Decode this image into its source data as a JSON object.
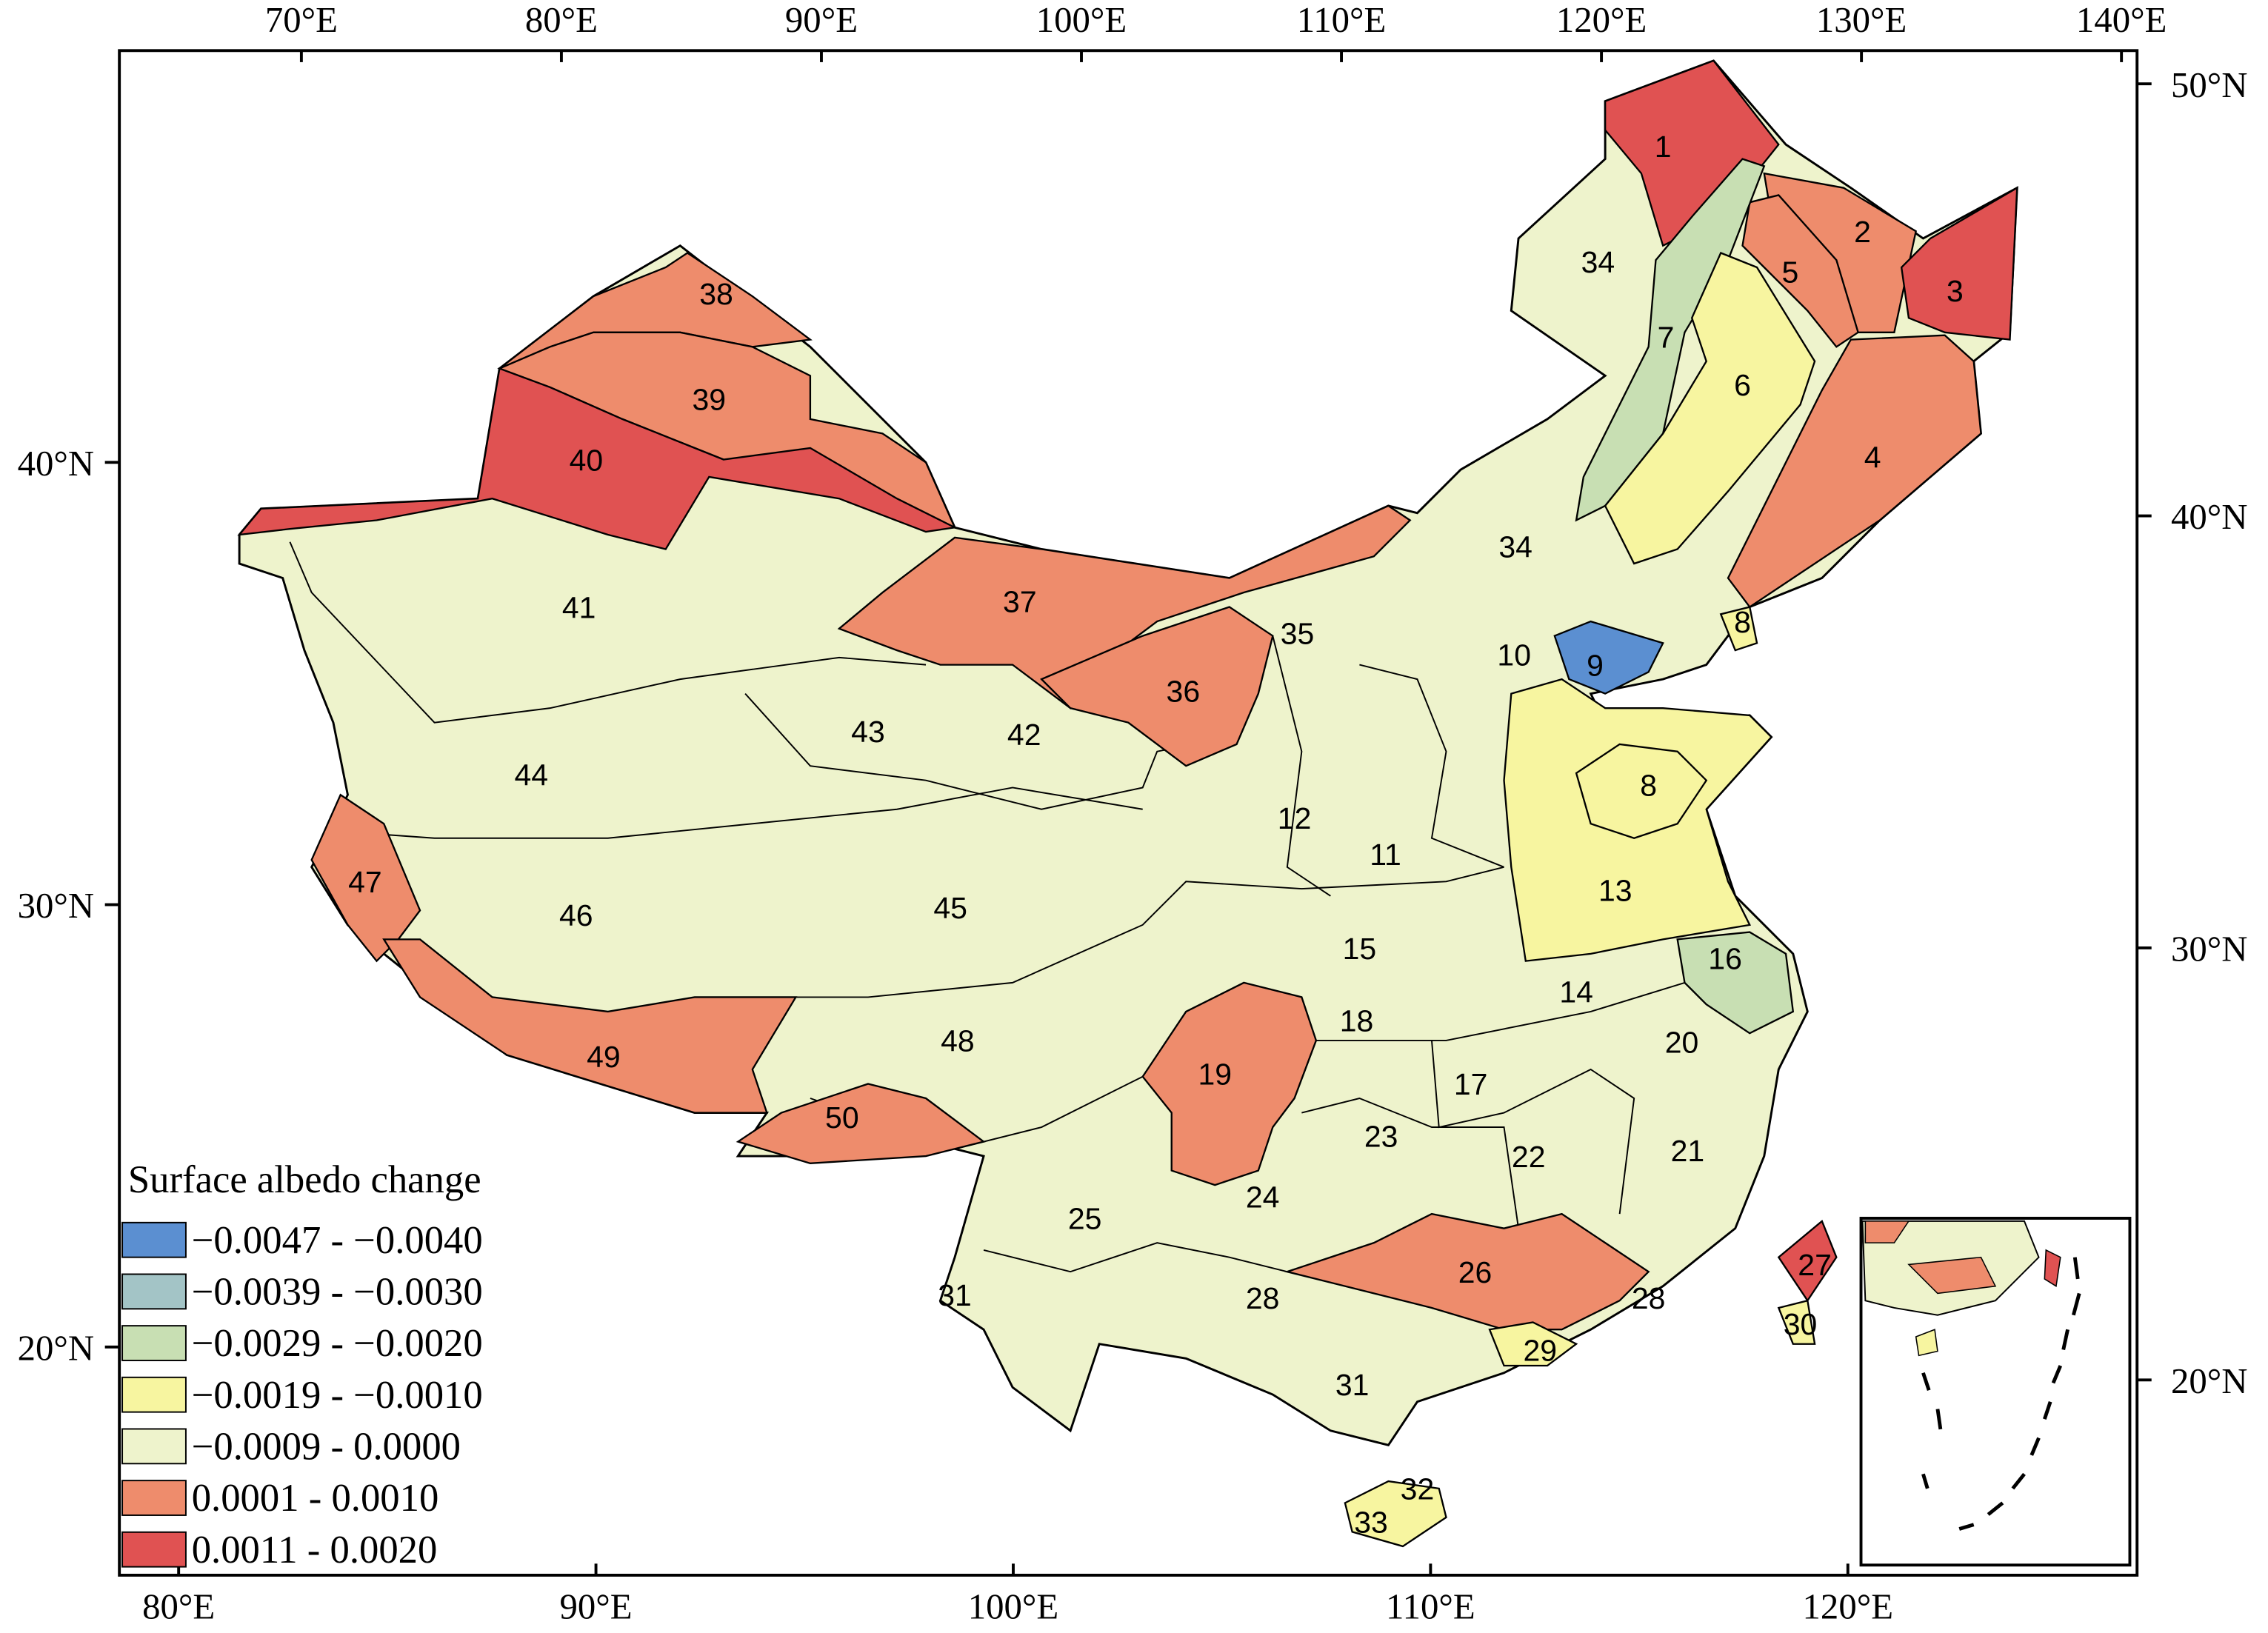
{
  "axes": {
    "top": {
      "lim": [
        63.0,
        140.6
      ],
      "ticks": [
        {
          "value": 70,
          "label": "70°E"
        },
        {
          "value": 80,
          "label": "80°E"
        },
        {
          "value": 90,
          "label": "90°E"
        },
        {
          "value": 100,
          "label": "100°E"
        },
        {
          "value": 110,
          "label": "110°E"
        },
        {
          "value": 120,
          "label": "120°E"
        },
        {
          "value": 130,
          "label": "130°E"
        },
        {
          "value": 140,
          "label": "140°E"
        }
      ]
    },
    "bottom": {
      "lim": [
        78.58,
        126.93
      ],
      "ticks": [
        {
          "value": 80,
          "label": "80°E"
        },
        {
          "value": 90,
          "label": "90°E"
        },
        {
          "value": 100,
          "label": "100°E"
        },
        {
          "value": 110,
          "label": "110°E"
        },
        {
          "value": 120,
          "label": "120°E"
        }
      ]
    },
    "left": {
      "lim": [
        49.31,
        14.84
      ],
      "ticks": [
        {
          "value": 40,
          "label": "40°N"
        },
        {
          "value": 30,
          "label": "30°N"
        },
        {
          "value": 20,
          "label": "20°N"
        }
      ]
    },
    "right": {
      "lim": [
        50.77,
        15.48
      ],
      "ticks": [
        {
          "value": 50,
          "label": "50°N"
        },
        {
          "value": 40,
          "label": "40°N"
        },
        {
          "value": 30,
          "label": "30°N"
        },
        {
          "value": 20,
          "label": "20°N"
        }
      ]
    }
  },
  "legend": {
    "title": "Surface albedo change",
    "items": [
      {
        "label": "−0.0047 - −0.0040",
        "color": "#5b8fd1"
      },
      {
        "label": "−0.0039 - −0.0030",
        "color": "#a3c4c6"
      },
      {
        "label": "−0.0029 - −0.0020",
        "color": "#c8dfb3"
      },
      {
        "label": "−0.0019 - −0.0010",
        "color": "#f7f5a0"
      },
      {
        "label": "−0.0009 - 0.0000",
        "color": "#eef3cc"
      },
      {
        "label": "0.0001 - 0.0010",
        "color": "#ee8c6c"
      },
      {
        "label": "0.0011 - 0.0020",
        "color": "#e05252"
      }
    ]
  },
  "regions": [
    {
      "label": "1",
      "color": "#e05252"
    },
    {
      "label": "2",
      "color": "#ee8c6c"
    },
    {
      "label": "3",
      "color": "#e05252"
    },
    {
      "label": "5",
      "color": "#ee8c6c"
    },
    {
      "label": "34",
      "color": "#eef3cc"
    },
    {
      "label": "7",
      "color": "#c8dfb3"
    },
    {
      "label": "6",
      "color": "#f7f5a0"
    },
    {
      "label": "4",
      "color": "#ee8c6c"
    },
    {
      "label": "38",
      "color": "#ee8c6c"
    },
    {
      "label": "39",
      "color": "#ee8c6c"
    },
    {
      "label": "40",
      "color": "#e05252"
    },
    {
      "label": "34",
      "color": "#eef3cc"
    },
    {
      "label": "37",
      "color": "#ee8c6c"
    },
    {
      "label": "35",
      "color": "#eef3cc"
    },
    {
      "label": "41",
      "color": "#eef3cc"
    },
    {
      "label": "8",
      "color": "#f7f5a0"
    },
    {
      "label": "10",
      "color": "#eef3cc"
    },
    {
      "label": "9",
      "color": "#5b8fd1"
    },
    {
      "label": "36",
      "color": "#ee8c6c"
    },
    {
      "label": "43",
      "color": "#eef3cc"
    },
    {
      "label": "42",
      "color": "#eef3cc"
    },
    {
      "label": "8",
      "color": "#f7f5a0"
    },
    {
      "label": "44",
      "color": "#eef3cc"
    },
    {
      "label": "12",
      "color": "#eef3cc"
    },
    {
      "label": "11",
      "color": "#eef3cc"
    },
    {
      "label": "47",
      "color": "#ee8c6c"
    },
    {
      "label": "13",
      "color": "#f7f5a0"
    },
    {
      "label": "46",
      "color": "#eef3cc"
    },
    {
      "label": "45",
      "color": "#eef3cc"
    },
    {
      "label": "15",
      "color": "#eef3cc"
    },
    {
      "label": "16",
      "color": "#c8dfb3"
    },
    {
      "label": "14",
      "color": "#eef3cc"
    },
    {
      "label": "18",
      "color": "#eef3cc"
    },
    {
      "label": "20",
      "color": "#eef3cc"
    },
    {
      "label": "49",
      "color": "#ee8c6c"
    },
    {
      "label": "48",
      "color": "#eef3cc"
    },
    {
      "label": "19",
      "color": "#ee8c6c"
    },
    {
      "label": "17",
      "color": "#eef3cc"
    },
    {
      "label": "23",
      "color": "#eef3cc"
    },
    {
      "label": "22",
      "color": "#eef3cc"
    },
    {
      "label": "21",
      "color": "#eef3cc"
    },
    {
      "label": "50",
      "color": "#ee8c6c"
    },
    {
      "label": "24",
      "color": "#eef3cc"
    },
    {
      "label": "25",
      "color": "#eef3cc"
    },
    {
      "label": "26",
      "color": "#ee8c6c"
    },
    {
      "label": "27",
      "color": "#e05252"
    },
    {
      "label": "31",
      "color": "#eef3cc"
    },
    {
      "label": "28",
      "color": "#eef3cc"
    },
    {
      "label": "28",
      "color": "#eef3cc"
    },
    {
      "label": "30",
      "color": "#f7f5a0"
    },
    {
      "label": "29",
      "color": "#f7f5a0"
    },
    {
      "label": "31",
      "color": "#eef3cc"
    },
    {
      "label": "32",
      "color": "#f7f5a0"
    },
    {
      "label": "33",
      "color": "#f7f5a0"
    }
  ]
}
